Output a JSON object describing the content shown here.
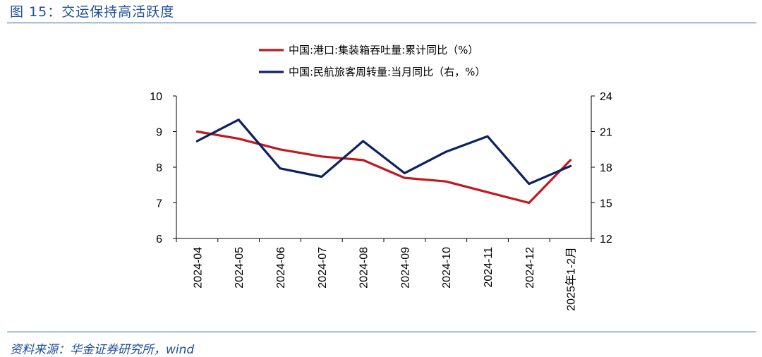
{
  "header": {
    "title": "图 15：交运保持高活跃度"
  },
  "footer": {
    "source": "资料来源：华金证券研究所，wind"
  },
  "chart_data": {
    "type": "line",
    "categories": [
      "2024-04",
      "2024-05",
      "2024-06",
      "2024-07",
      "2024-08",
      "2024-09",
      "2024-10",
      "2024-11",
      "2024-12",
      "2025年1-2月"
    ],
    "series": [
      {
        "name": "中国:港口:集装箱吞吐量:累计同比（%）",
        "axis": "left",
        "color": "#c0191f",
        "values": [
          9.0,
          8.8,
          8.5,
          8.3,
          8.2,
          7.7,
          7.6,
          7.3,
          7.0,
          8.2
        ]
      },
      {
        "name": "中国:民航旅客周转量:当月同比（右，%）",
        "axis": "right",
        "color": "#0b2161",
        "values": [
          20.2,
          22.0,
          17.9,
          17.2,
          20.2,
          17.5,
          19.3,
          20.6,
          16.6,
          18.1
        ]
      }
    ],
    "y_left": {
      "ylim": [
        6,
        10
      ],
      "ticks": [
        "6",
        "7",
        "8",
        "9",
        "10"
      ]
    },
    "y_right": {
      "ylim": [
        12,
        24
      ],
      "ticks": [
        "12",
        "15",
        "18",
        "21",
        "24"
      ]
    },
    "legend": "top-center",
    "grid": false
  }
}
